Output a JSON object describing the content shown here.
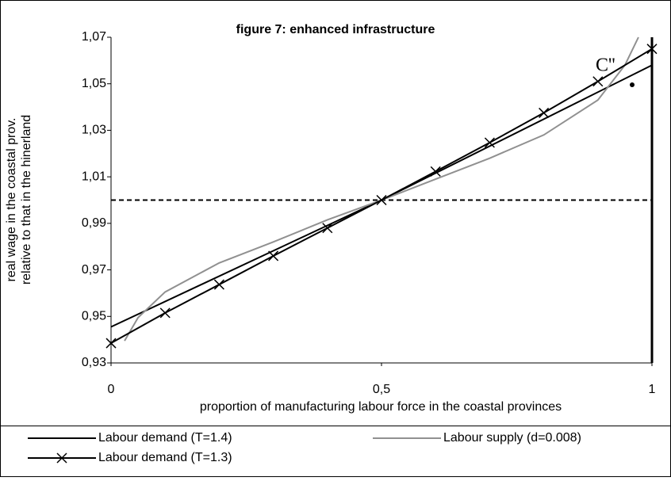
{
  "chart_data": {
    "type": "line",
    "title": "figure 7: enhanced infrastructure",
    "xlabel": "proportion of manufacturing labour force in the coastal provinces",
    "ylabel": [
      "real wage in the coastal prov.",
      "relative to that in the hinerland"
    ],
    "annotation": "C''",
    "xlim": [
      0,
      1
    ],
    "ylim": [
      0.93,
      1.07
    ],
    "xticks": [
      0,
      {
        "value": 0.5,
        "label": "0,5"
      },
      1
    ],
    "yticks": [
      {
        "value": 0.93,
        "label": "0,93"
      },
      {
        "value": 0.95,
        "label": "0,95"
      },
      {
        "value": 0.97,
        "label": "0,97"
      },
      {
        "value": 0.99,
        "label": "0,99"
      },
      {
        "value": 1.01,
        "label": "1,01"
      },
      {
        "value": 1.03,
        "label": "1,03"
      },
      {
        "value": 1.05,
        "label": "1,05"
      },
      {
        "value": 1.07,
        "label": "1,07"
      }
    ],
    "reference_y": 1,
    "reference_x": 1,
    "series": [
      {
        "name": "Labour demand (T=1.4)",
        "color": "#000000",
        "marker": "none",
        "x": [
          0,
          0.5,
          1
        ],
        "values": [
          0.9455,
          1.0,
          1.058
        ]
      },
      {
        "name": "Labour supply (d=0.008)",
        "color": "#909090",
        "marker": "none",
        "x": [
          0.025,
          0.05,
          0.1,
          0.2,
          0.3,
          0.4,
          0.5,
          0.6,
          0.7,
          0.8,
          0.9,
          0.95,
          0.975
        ],
        "values": [
          0.9395,
          0.9495,
          0.9605,
          0.973,
          0.982,
          0.9915,
          1.0,
          1.009,
          1.018,
          1.028,
          1.043,
          1.058,
          1.07
        ]
      },
      {
        "name": "Labour demand (T=1.3)",
        "color": "#000000",
        "marker": "x",
        "x": [
          0,
          0.1,
          0.2,
          0.3,
          0.4,
          0.5,
          0.6,
          0.7,
          0.8,
          0.9,
          1
        ],
        "values": [
          0.9385,
          0.9515,
          0.9637,
          0.976,
          0.988,
          1.0,
          1.0123,
          1.0247,
          1.0375,
          1.051,
          1.065
        ]
      }
    ]
  }
}
